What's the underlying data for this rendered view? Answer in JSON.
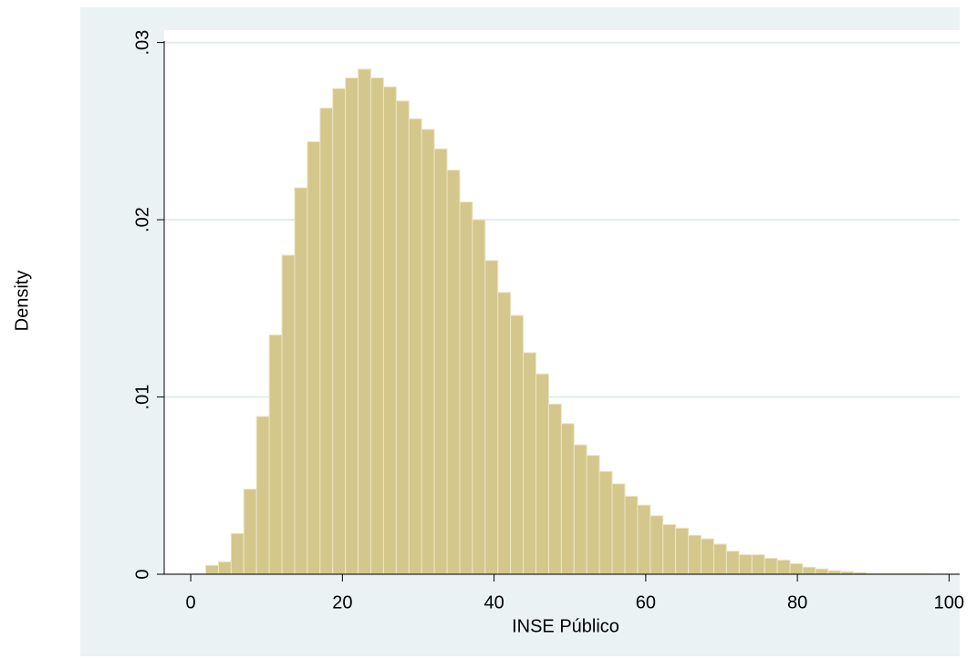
{
  "chart_data": {
    "type": "histogram",
    "x_label": "INSE Público",
    "y_label": "Density",
    "color": "#d4c78c",
    "edgecolor": "#ede5c2",
    "grid": true,
    "bins": [
      0.3,
      1.975,
      3.65,
      5.325,
      7,
      8.675,
      10.35,
      12.025,
      13.7,
      15.375,
      17.05,
      18.725,
      20.4,
      22.075,
      23.75,
      25.425,
      27.1,
      28.775,
      30.45,
      32.125,
      33.8,
      35.475,
      37.15,
      38.825,
      40.5,
      42.175,
      43.85,
      45.525,
      47.2,
      48.875,
      50.55,
      52.225,
      53.9,
      55.575,
      57.25,
      58.925,
      60.6,
      62.275,
      63.95,
      65.625,
      67.3,
      68.975,
      70.65,
      72.325,
      74,
      75.675,
      77.35,
      79.025,
      80.7,
      82.375,
      84.05,
      85.725,
      87.4,
      89.075,
      90.75,
      92.425,
      94.1,
      95.775,
      97.45
    ],
    "values": [
      5e-05,
      0.0005,
      0.0007,
      0.0023,
      0.0048,
      0.0089,
      0.0135,
      0.018,
      0.0218,
      0.0244,
      0.0263,
      0.0274,
      0.028,
      0.0285,
      0.028,
      0.0275,
      0.0267,
      0.0257,
      0.0251,
      0.024,
      0.0228,
      0.021,
      0.02,
      0.0177,
      0.0159,
      0.0146,
      0.0125,
      0.0113,
      0.0096,
      0.0085,
      0.0073,
      0.0067,
      0.0058,
      0.0051,
      0.0044,
      0.0039,
      0.0033,
      0.0028,
      0.0026,
      0.0022,
      0.002,
      0.0017,
      0.0013,
      0.0011,
      0.0011,
      0.0009,
      0.0008,
      0.0006,
      0.0004,
      0.0003,
      0.0002,
      0.00015,
      0.0001,
      5e-05,
      5e-05,
      5e-05,
      5e-05,
      5e-05
    ],
    "xlim": [
      -3.5,
      101.4
    ],
    "ylim": [
      0,
      0.0307
    ],
    "xticks": [
      0,
      20,
      40,
      60,
      80,
      100
    ],
    "yticks": [
      0,
      {
        "value": 0.01,
        "label": ".01"
      },
      {
        "value": 0.02,
        "label": ".02"
      },
      {
        "value": 0.03,
        "label": ".03"
      }
    ]
  }
}
